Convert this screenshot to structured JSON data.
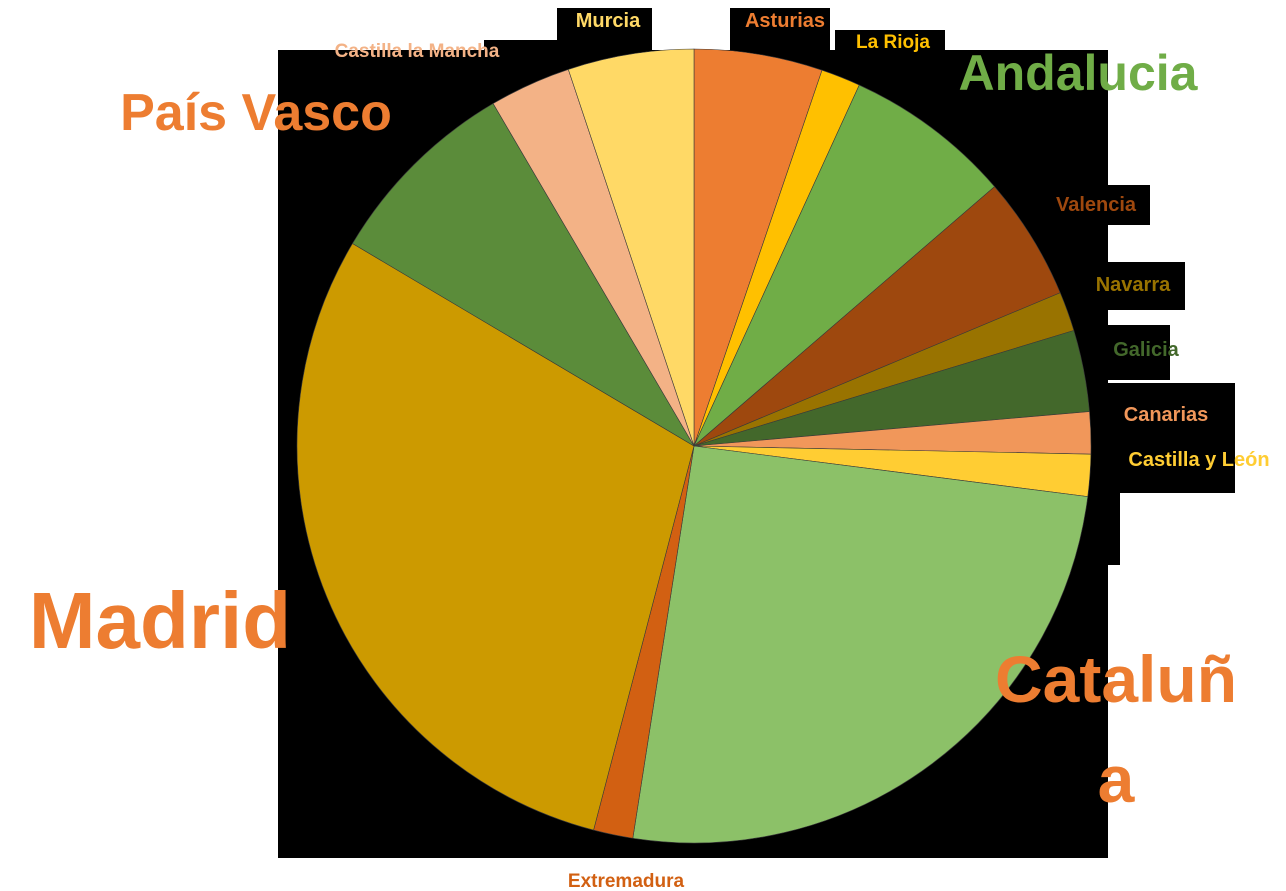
{
  "chart_data": {
    "type": "pie",
    "title": "",
    "slices": [
      {
        "label": "Asturias",
        "value": 5.2,
        "color": "#ED7D31",
        "label_color": "#ED7D31",
        "size": "small"
      },
      {
        "label": "La Rioja",
        "value": 1.6,
        "color": "#FFC000",
        "label_color": "#FFC000",
        "size": "small"
      },
      {
        "label": "Andalucia",
        "value": 6.8,
        "color": "#70AD47",
        "label_color": "#70AD47",
        "size": "large"
      },
      {
        "label": "Valencia",
        "value": 5.0,
        "color": "#9E480E",
        "label_color": "#9E480E",
        "size": "small"
      },
      {
        "label": "Navarra",
        "value": 1.6,
        "color": "#997300",
        "label_color": "#997300",
        "size": "small"
      },
      {
        "label": "Galicia",
        "value": 3.3,
        "color": "#43682B",
        "label_color": "#43682B",
        "size": "small"
      },
      {
        "label": "Canarias",
        "value": 1.7,
        "color": "#F1975A",
        "label_color": "#F1975A",
        "size": "small"
      },
      {
        "label": "Castilla y León",
        "value": 1.7,
        "color": "#FFCD33",
        "label_color": "#FFCD33",
        "size": "small"
      },
      {
        "label": "Cataluña",
        "value": 25.3,
        "color": "#8CC168",
        "label_color": "#ED7D31",
        "size": "huge"
      },
      {
        "label": "Extremadura",
        "value": 1.6,
        "color": "#D26012",
        "label_color": "#D26012",
        "size": "small"
      },
      {
        "label": "Madrid",
        "value": 29.3,
        "color": "#CC9A00",
        "label_color": "#ED7D31",
        "size": "huge"
      },
      {
        "label": "País Vasco",
        "value": 8.0,
        "color": "#5B8C3A",
        "label_color": "#ED7D31",
        "size": "large"
      },
      {
        "label": "Castilla la Mancha",
        "value": 3.3,
        "color": "#F3B286",
        "label_color": "#F3B286",
        "size": "small"
      },
      {
        "label": "Murcia",
        "value": 5.1,
        "color": "#FFD966",
        "label_color": "#FFD966",
        "size": "small"
      }
    ]
  }
}
